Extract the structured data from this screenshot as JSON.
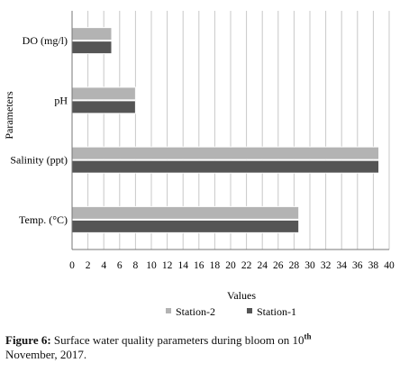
{
  "chart_data": {
    "type": "bar",
    "orientation": "horizontal",
    "categories": [
      "DO (mg/l)",
      "pH",
      "Salinity (ppt)",
      "Temp. (°C)"
    ],
    "series": [
      {
        "name": "Station-2",
        "values": [
          5,
          8,
          38.7,
          28.6
        ],
        "color": "#b3b3b3"
      },
      {
        "name": "Station-1",
        "values": [
          5,
          8,
          38.7,
          28.6
        ],
        "color": "#555555"
      }
    ],
    "xlabel": "Values",
    "ylabel": "Parameters",
    "xlim": [
      0,
      40
    ],
    "xticks": [
      "0",
      "2",
      "4",
      "6",
      "8",
      "10",
      "12",
      "14",
      "16",
      "18",
      "20",
      "22",
      "24",
      "26",
      "28",
      "30",
      "32",
      "34",
      "36",
      "38",
      "40"
    ],
    "grid": "vertical",
    "legend_position": "bottom"
  },
  "caption": {
    "label": "Figure 6:",
    "text": "Surface water quality parameters  during bloom on 10",
    "superscript": "th",
    "line2": "November, 2017."
  }
}
